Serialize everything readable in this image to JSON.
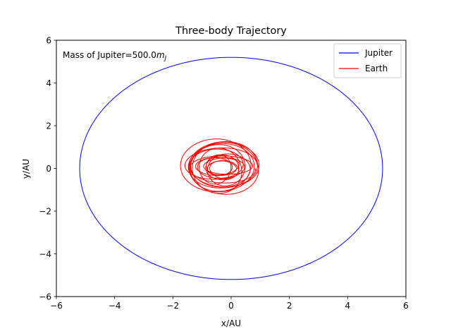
{
  "chart_data": {
    "type": "line",
    "title": "Three-body Trajectory",
    "xlabel": "x/AU",
    "ylabel": "y/AU",
    "xlim": [
      -6,
      6
    ],
    "ylim": [
      -6,
      6
    ],
    "xticks": [
      -6,
      -4,
      -2,
      0,
      2,
      4,
      6
    ],
    "yticks": [
      -6,
      -4,
      -2,
      0,
      2,
      4,
      6
    ],
    "xtick_labels": [
      "−6",
      "−4",
      "−2",
      "0",
      "2",
      "4",
      "6"
    ],
    "ytick_labels": [
      "−6",
      "−4",
      "−2",
      "0",
      "2",
      "4",
      "6"
    ],
    "grid": false,
    "legend_position": "upper-right",
    "annotation": {
      "prefix": "Mass of Jupiter=500.0",
      "math_base": "m",
      "math_sub": "J"
    },
    "series": [
      {
        "name": "Jupiter",
        "color": "#0000ff",
        "orbit": {
          "center_x": 0.0,
          "center_y": 0.0,
          "semi_x": 5.2,
          "semi_y": 5.2
        }
      },
      {
        "name": "Earth",
        "color": "#ff0000",
        "orbit": {
          "center_x": -0.35,
          "center_y": 0.05,
          "semi_x_min": 0.45,
          "semi_x_max": 1.25,
          "semi_y_min": 0.35,
          "semi_y_max": 1.25,
          "loops": 18
        }
      }
    ]
  }
}
